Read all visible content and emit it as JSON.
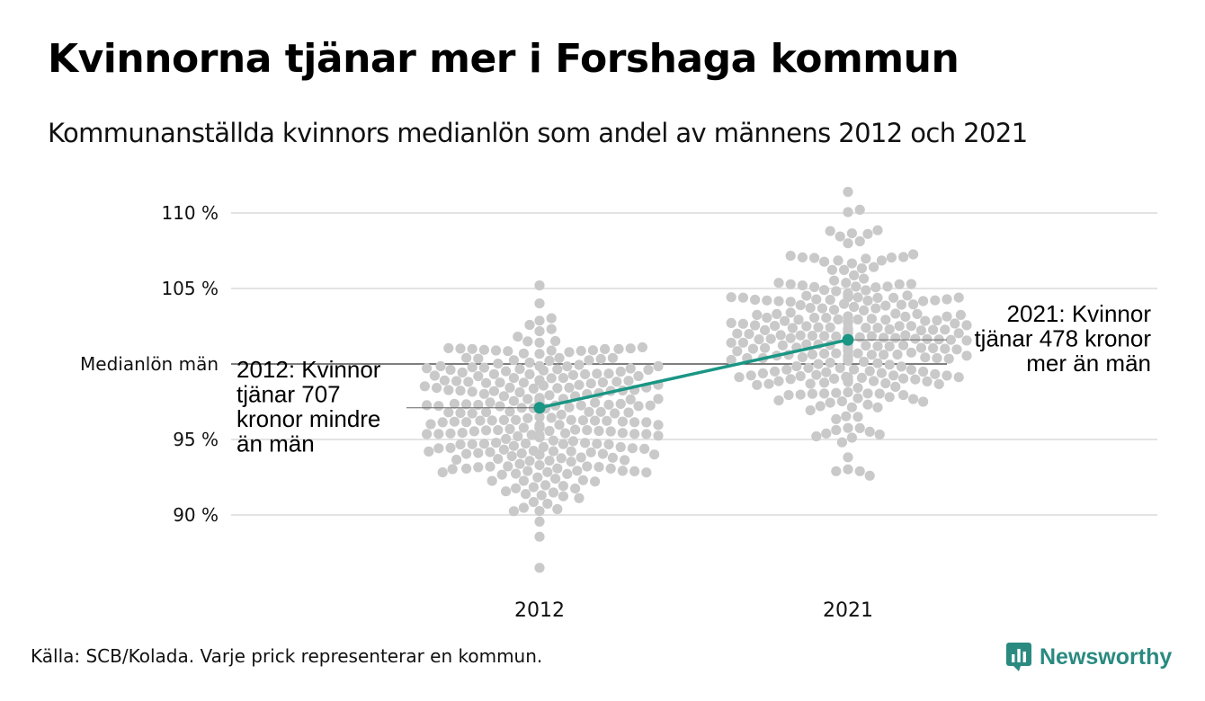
{
  "header": {
    "title": "Kvinnorna tjänar mer i Forshaga kommun",
    "subtitle": "Kommunanställda kvinnors medianlön som andel av männens 2012 och 2021"
  },
  "footer": {
    "source": "Källa: SCB/Kolada. Varje prick representerar en kommun.",
    "brand": "Newsworthy",
    "brand_icon": "newsworthy-logo-icon"
  },
  "colors": {
    "highlight": "#1a9684",
    "dots": "#c9c9c9",
    "grid": "#e3e3e3",
    "reference": "#333333",
    "brand": "#2a8a80"
  },
  "chart_data": {
    "type": "scatter",
    "subtype": "beeswarm",
    "categories": [
      "2012",
      "2021"
    ],
    "ylim": [
      86,
      111.5
    ],
    "y_ticks": [
      {
        "value": 90,
        "label": "90 %"
      },
      {
        "value": 95,
        "label": "95 %"
      },
      {
        "value": 105,
        "label": "105 %"
      },
      {
        "value": 110,
        "label": "110 %"
      }
    ],
    "reference_line": {
      "value": 100,
      "label": "Medianlön män"
    },
    "grid": true,
    "distribution": [
      {
        "year": "2012",
        "min": 86.5,
        "max": 105.2,
        "count": 290
      },
      {
        "year": "2021",
        "min": 92.6,
        "max": 111.4,
        "count": 290
      }
    ],
    "highlight": {
      "values": [
        97.1,
        101.6
      ],
      "annotations": [
        {
          "year": "2012",
          "lines": [
            "2012: Kvinnor",
            "tjänar 707",
            "kronor mindre",
            "än män"
          ]
        },
        {
          "year": "2021",
          "lines": [
            "2021: Kvinnor",
            "tjänar 478 kronor",
            "mer än män"
          ]
        }
      ]
    }
  }
}
